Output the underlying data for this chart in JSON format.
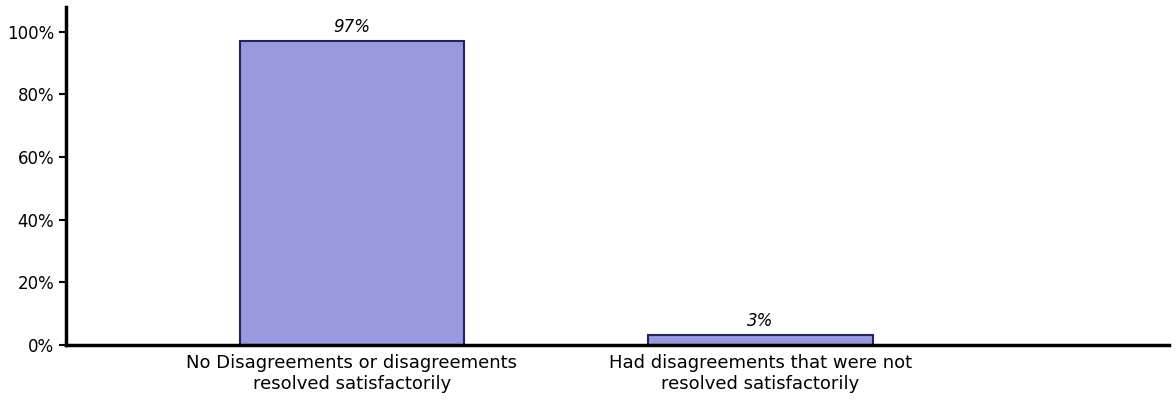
{
  "categories": [
    "No Disagreements or disagreements\nresolved satisfactorily",
    "Had disagreements that were not\nresolved satisfactorily"
  ],
  "values": [
    0.97,
    0.03
  ],
  "labels": [
    "97%",
    "3%"
  ],
  "bar_color": "#9999dd",
  "bar_edgecolor": "#222266",
  "bar_linewidth": 1.5,
  "background_color": "#ffffff",
  "ylim": [
    0,
    1.08
  ],
  "yticks": [
    0.0,
    0.2,
    0.4,
    0.6,
    0.8,
    1.0
  ],
  "ytick_labels": [
    "0%",
    "20%",
    "40%",
    "60%",
    "80%",
    "100%"
  ],
  "label_fontsize": 12,
  "tick_fontsize": 12,
  "xlabel_fontsize": 13,
  "bar_width": 0.55,
  "x_positions": [
    1,
    2
  ],
  "xlim": [
    0.3,
    3.0
  ]
}
